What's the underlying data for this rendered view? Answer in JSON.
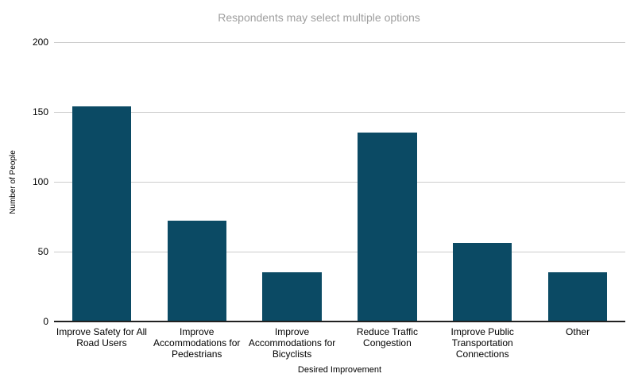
{
  "chart_title": "Respondents may select multiple options",
  "colors": {
    "bar": "#0b4a64",
    "gridline": "#cccccc",
    "axis_line": "#212121",
    "title_text": "#9e9e9e",
    "tick_text": "#000000",
    "background": "#ffffff"
  },
  "chart_data": {
    "type": "bar",
    "title": "Respondents may select multiple options",
    "categories": [
      "Improve Safety for All Road Users",
      "Improve Accommodations for Pedestrians",
      "Improve Accommodations for Bicyclists",
      "Reduce Traffic Congestion",
      "Improve Public Transportation Connections",
      "Other"
    ],
    "values": [
      154,
      72,
      35,
      135,
      56,
      35
    ],
    "xlabel": "Desired Improvement",
    "ylabel": "Number of People",
    "ylim": [
      0,
      200
    ],
    "yticks": [
      0,
      50,
      100,
      150,
      200
    ],
    "grid": "horizontal gridlines at each y tick",
    "legend": "none",
    "bar_color": "#0b4a64"
  }
}
